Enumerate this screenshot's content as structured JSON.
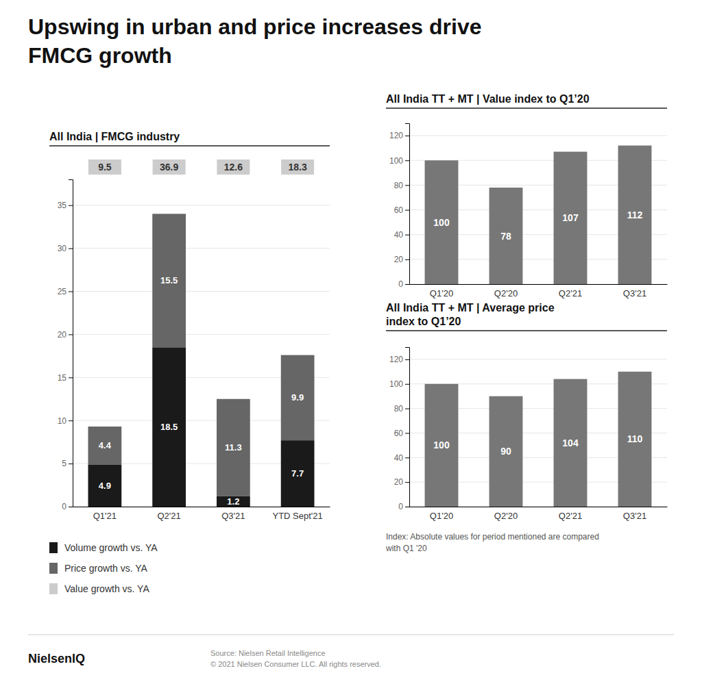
{
  "title": "Upswing in urban and price increases drive\nFMCG growth",
  "annotations": [
    "NielsenIQ",
    "Source: Nielsen Retail Intelligence\n© 2021 Nielsen Consumer LLC. All rights reserved."
  ],
  "chart_data": [
    {
      "type": "bar",
      "stacked": true,
      "title": "All India | FMCG industry",
      "categories": [
        "Q1'21",
        "Q2'21",
        "Q3'21",
        "YTD Sept'21"
      ],
      "series": [
        {
          "name": "Volume growth vs. YA",
          "color": "#1a1a1a",
          "values": [
            4.9,
            18.5,
            1.2,
            7.7
          ]
        },
        {
          "name": "Price growth vs. YA",
          "color": "#666666",
          "values": [
            4.4,
            15.5,
            11.3,
            9.9
          ]
        },
        {
          "name": "Value growth vs. YA",
          "color": "#cccccc",
          "type": "text",
          "values": [
            9.5,
            36.9,
            12.6,
            18.3
          ]
        }
      ],
      "ylim": [
        0,
        38
      ],
      "yticks": [
        0,
        5,
        10,
        15,
        20,
        25,
        30,
        35
      ],
      "grid": true,
      "legend": "bottom",
      "data_labels": true
    },
    {
      "type": "bar",
      "title": "All India TT + MT | Value index to Q1’20",
      "categories": [
        "Q1'20",
        "Q2'20",
        "Q2'21",
        "Q3'21"
      ],
      "values": [
        100,
        78,
        107,
        112
      ],
      "color": "#777777",
      "ylim": [
        0,
        130
      ],
      "yticks": [
        0,
        20,
        40,
        60,
        80,
        100,
        120
      ],
      "grid": true,
      "data_labels": true
    },
    {
      "type": "bar",
      "title": "All India TT + MT | Average price\nindex to Q1’20",
      "categories": [
        "Q1'20",
        "Q2'20",
        "Q2'21",
        "Q3'21"
      ],
      "values": [
        100,
        90,
        104,
        110
      ],
      "color": "#777777",
      "ylim": [
        0,
        130
      ],
      "yticks": [
        0,
        20,
        40,
        60,
        80,
        100,
        120
      ],
      "grid": true,
      "data_labels": true,
      "annotations": [
        "Index: Absolute values for period mentioned are compared\nwith Q1 '20"
      ]
    }
  ]
}
